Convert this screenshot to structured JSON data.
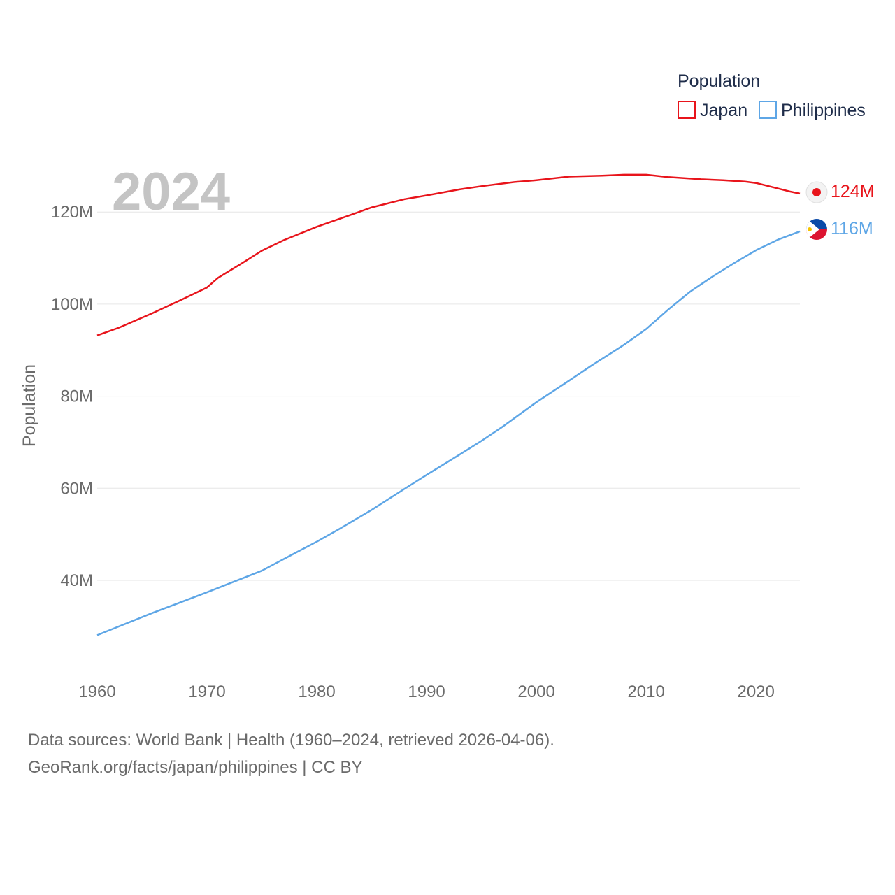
{
  "chart_data": {
    "type": "line",
    "ylabel": "Population",
    "legend_title": "Population",
    "current_year": "2024",
    "ylim": [
      20000000,
      130000000
    ],
    "xlim": [
      1960,
      2024
    ],
    "y_ticks": [
      {
        "value": 40000000,
        "label": "40M"
      },
      {
        "value": 60000000,
        "label": "60M"
      },
      {
        "value": 80000000,
        "label": "80M"
      },
      {
        "value": 100000000,
        "label": "100M"
      },
      {
        "value": 120000000,
        "label": "120M"
      }
    ],
    "x_ticks": [
      {
        "value": 1960,
        "label": "1960"
      },
      {
        "value": 1970,
        "label": "1970"
      },
      {
        "value": 1980,
        "label": "1980"
      },
      {
        "value": 1990,
        "label": "1990"
      },
      {
        "value": 2000,
        "label": "2000"
      },
      {
        "value": 2010,
        "label": "2010"
      },
      {
        "value": 2020,
        "label": "2020"
      }
    ],
    "series": [
      {
        "name": "Japan",
        "color": "#e8141b",
        "end_label": "124M",
        "flag": "japan-flag",
        "points": [
          [
            1960,
            93.2
          ],
          [
            1962,
            94.9
          ],
          [
            1965,
            98.0
          ],
          [
            1968,
            101.3
          ],
          [
            1970,
            103.6
          ],
          [
            1971,
            105.7
          ],
          [
            1973,
            108.6
          ],
          [
            1975,
            111.6
          ],
          [
            1977,
            113.9
          ],
          [
            1980,
            116.8
          ],
          [
            1983,
            119.3
          ],
          [
            1985,
            121.0
          ],
          [
            1988,
            122.8
          ],
          [
            1990,
            123.6
          ],
          [
            1993,
            124.9
          ],
          [
            1995,
            125.6
          ],
          [
            1998,
            126.5
          ],
          [
            2000,
            126.9
          ],
          [
            2003,
            127.7
          ],
          [
            2006,
            127.9
          ],
          [
            2008,
            128.1
          ],
          [
            2010,
            128.1
          ],
          [
            2012,
            127.6
          ],
          [
            2015,
            127.1
          ],
          [
            2017,
            126.9
          ],
          [
            2019,
            126.6
          ],
          [
            2020,
            126.3
          ],
          [
            2022,
            125.1
          ],
          [
            2023,
            124.5
          ],
          [
            2024,
            124.0
          ]
        ]
      },
      {
        "name": "Philippines",
        "color": "#5ea6e6",
        "end_label": "116M",
        "flag": "philippines-flag",
        "points": [
          [
            1960,
            28.1
          ],
          [
            1965,
            32.9
          ],
          [
            1970,
            37.4
          ],
          [
            1975,
            42.1
          ],
          [
            1978,
            45.9
          ],
          [
            1980,
            48.4
          ],
          [
            1982,
            51.1
          ],
          [
            1985,
            55.3
          ],
          [
            1988,
            59.9
          ],
          [
            1990,
            62.9
          ],
          [
            1993,
            67.3
          ],
          [
            1995,
            70.3
          ],
          [
            1997,
            73.5
          ],
          [
            2000,
            78.7
          ],
          [
            2003,
            83.4
          ],
          [
            2005,
            86.6
          ],
          [
            2008,
            91.2
          ],
          [
            2010,
            94.6
          ],
          [
            2012,
            98.8
          ],
          [
            2014,
            102.7
          ],
          [
            2016,
            105.9
          ],
          [
            2018,
            108.9
          ],
          [
            2020,
            111.7
          ],
          [
            2022,
            114.0
          ],
          [
            2024,
            115.8
          ]
        ]
      }
    ]
  },
  "footer": {
    "line1": "Data sources: World Bank | Health (1960–2024, retrieved 2026-04-06).",
    "line2": "GeoRank.org/facts/japan/philippines | CC BY"
  }
}
